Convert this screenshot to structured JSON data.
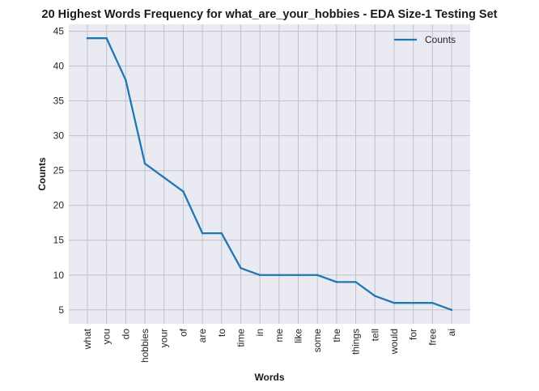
{
  "chart_data": {
    "type": "line",
    "title": "20 Highest Words Frequency for what_are_your_hobbies - EDA Size-1 Testing Set",
    "xlabel": "Words",
    "ylabel": "Counts",
    "categories": [
      "what",
      "you",
      "do",
      "hobbies",
      "your",
      "of",
      "are",
      "to",
      "time",
      "in",
      "me",
      "like",
      "some",
      "the",
      "things",
      "tell",
      "would",
      "for",
      "free",
      "ai"
    ],
    "series": [
      {
        "name": "Counts",
        "values": [
          44,
          44,
          38,
          26,
          24,
          22,
          16,
          16,
          11,
          10,
          10,
          10,
          10,
          9,
          9,
          7,
          6,
          6,
          6,
          5
        ],
        "color": "#1f77b4"
      }
    ],
    "ylim": [
      3,
      46
    ],
    "yticks": [
      5,
      10,
      15,
      20,
      25,
      30,
      35,
      40,
      45
    ],
    "grid": true,
    "legend_position": "top-right",
    "background_color": "#eaeaf2",
    "grid_color": "#c0c0c8"
  }
}
